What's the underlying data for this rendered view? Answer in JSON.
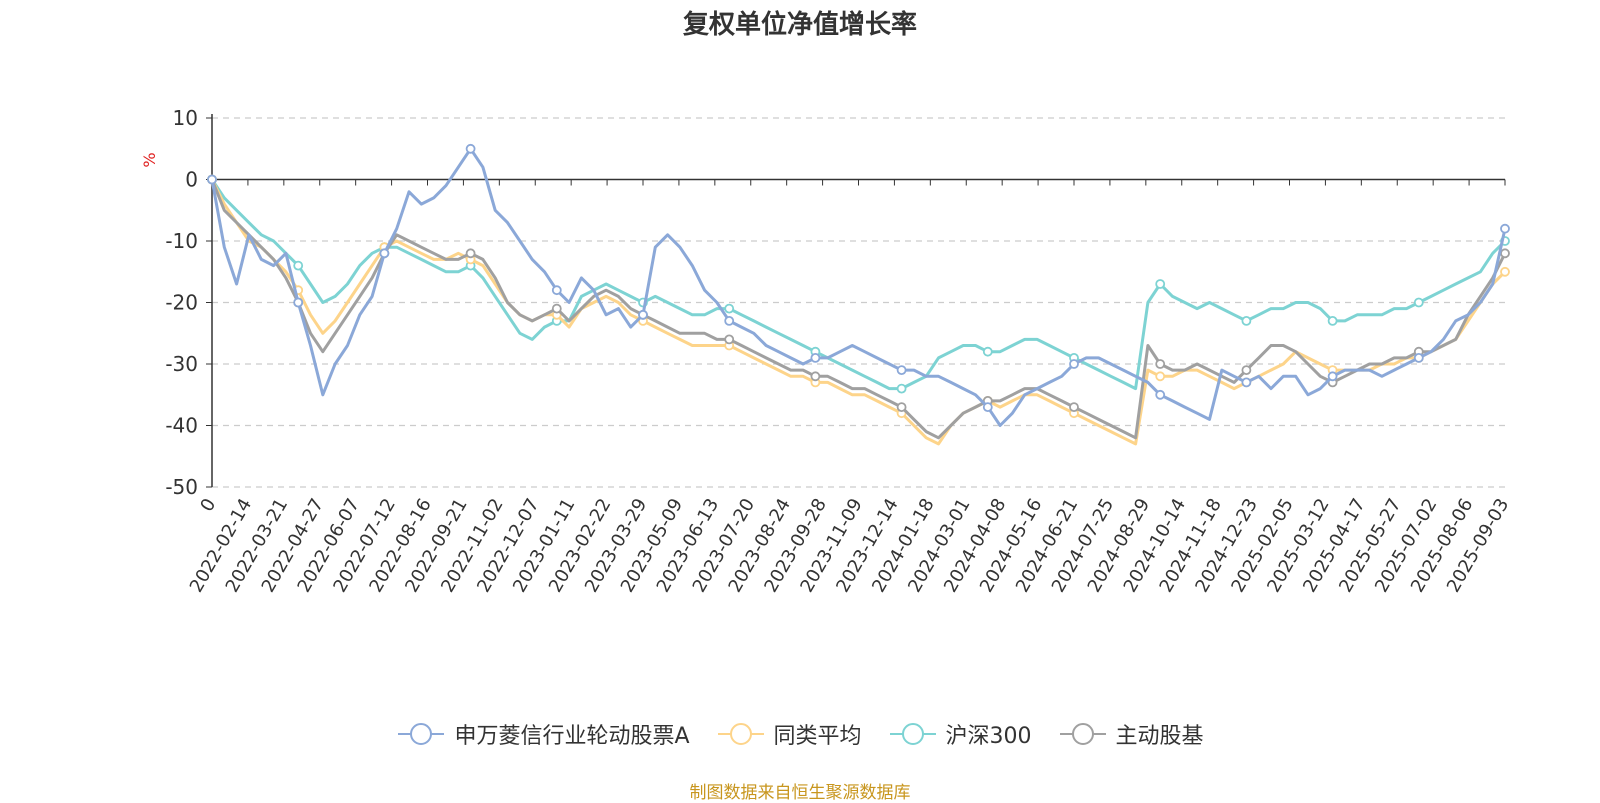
{
  "chart_data": {
    "type": "line",
    "title": "复权单位净值增长率",
    "ylabel": "%",
    "ylim": [
      -50,
      10
    ],
    "yticks": [
      10,
      0,
      -10,
      -20,
      -30,
      -40,
      -50
    ],
    "grid": "horizontal-dashed",
    "legend_position": "bottom",
    "x_tick_labels": [
      "0",
      "2022-02-14",
      "2022-03-21",
      "2022-04-27",
      "2022-06-07",
      "2022-07-12",
      "2022-08-16",
      "2022-09-21",
      "2022-11-02",
      "2022-12-07",
      "2023-01-11",
      "2023-02-22",
      "2023-03-29",
      "2023-05-09",
      "2023-06-13",
      "2023-07-20",
      "2023-08-24",
      "2023-09-28",
      "2023-11-09",
      "2023-12-14",
      "2024-01-18",
      "2024-03-01",
      "2024-04-08",
      "2024-05-16",
      "2024-06-21",
      "2024-07-25",
      "2024-08-29",
      "2024-10-14",
      "2024-11-18",
      "2024-12-23",
      "2025-02-05",
      "2025-03-12",
      "2025-04-17",
      "2025-05-27",
      "2025-07-02",
      "2025-08-06",
      "2025-09-03"
    ],
    "series": [
      {
        "name": "申万菱信行业轮动股票A",
        "color": "#8ba8d8",
        "values": [
          0,
          -11,
          -17,
          -9,
          -13,
          -14,
          -12,
          -20,
          -27,
          -35,
          -30,
          -27,
          -22,
          -19,
          -12,
          -8,
          -2,
          -4,
          -3,
          -1,
          2,
          5,
          2,
          -5,
          -7,
          -10,
          -13,
          -15,
          -18,
          -20,
          -16,
          -18,
          -22,
          -21,
          -24,
          -22,
          -11,
          -9,
          -11,
          -14,
          -18,
          -20,
          -23,
          -24,
          -25,
          -27,
          -28,
          -29,
          -30,
          -29,
          -29,
          -28,
          -27,
          -28,
          -29,
          -30,
          -31,
          -31,
          -32,
          -32,
          -33,
          -34,
          -35,
          -37,
          -40,
          -38,
          -35,
          -34,
          -33,
          -32,
          -30,
          -29,
          -29,
          -30,
          -31,
          -32,
          -33,
          -35,
          -36,
          -37,
          -38,
          -39,
          -31,
          -32,
          -33,
          -32,
          -34,
          -32,
          -32,
          -35,
          -34,
          -32,
          -31,
          -31,
          -31,
          -32,
          -31,
          -30,
          -29,
          -28,
          -26,
          -23,
          -22,
          -20,
          -17,
          -8
        ]
      },
      {
        "name": "同类平均",
        "color": "#fdd48a",
        "values": [
          0,
          -4,
          -7,
          -10,
          -11,
          -13,
          -15,
          -18,
          -22,
          -25,
          -23,
          -20,
          -17,
          -14,
          -11,
          -10,
          -11,
          -12,
          -13,
          -13,
          -12,
          -13,
          -14,
          -17,
          -20,
          -22,
          -23,
          -22,
          -22,
          -24,
          -21,
          -20,
          -19,
          -20,
          -22,
          -23,
          -24,
          -25,
          -26,
          -27,
          -27,
          -27,
          -27,
          -28,
          -29,
          -30,
          -31,
          -32,
          -32,
          -33,
          -33,
          -34,
          -35,
          -35,
          -36,
          -37,
          -38,
          -40,
          -42,
          -43,
          -40,
          -38,
          -37,
          -36,
          -37,
          -36,
          -35,
          -35,
          -36,
          -37,
          -38,
          -39,
          -40,
          -41,
          -42,
          -43,
          -31,
          -32,
          -32,
          -31,
          -31,
          -32,
          -33,
          -34,
          -33,
          -32,
          -31,
          -30,
          -28,
          -29,
          -30,
          -31,
          -31,
          -31,
          -31,
          -30,
          -30,
          -29,
          -29,
          -28,
          -27,
          -26,
          -23,
          -20,
          -17,
          -15
        ]
      },
      {
        "name": "沪深300",
        "color": "#7dd3d3",
        "values": [
          0,
          -3,
          -5,
          -7,
          -9,
          -10,
          -12,
          -14,
          -17,
          -20,
          -19,
          -17,
          -14,
          -12,
          -11,
          -11,
          -12,
          -13,
          -14,
          -15,
          -15,
          -14,
          -16,
          -19,
          -22,
          -25,
          -26,
          -24,
          -23,
          -23,
          -19,
          -18,
          -17,
          -18,
          -19,
          -20,
          -19,
          -20,
          -21,
          -22,
          -22,
          -21,
          -21,
          -22,
          -23,
          -24,
          -25,
          -26,
          -27,
          -28,
          -29,
          -30,
          -31,
          -32,
          -33,
          -34,
          -34,
          -33,
          -32,
          -29,
          -28,
          -27,
          -27,
          -28,
          -28,
          -27,
          -26,
          -26,
          -27,
          -28,
          -29,
          -30,
          -31,
          -32,
          -33,
          -34,
          -20,
          -17,
          -19,
          -20,
          -21,
          -20,
          -21,
          -22,
          -23,
          -22,
          -21,
          -21,
          -20,
          -20,
          -21,
          -23,
          -23,
          -22,
          -22,
          -22,
          -21,
          -21,
          -20,
          -19,
          -18,
          -17,
          -16,
          -15,
          -12,
          -10
        ]
      },
      {
        "name": "主动股基",
        "color": "#a0a0a0",
        "values": [
          0,
          -5,
          -7,
          -9,
          -11,
          -13,
          -16,
          -20,
          -25,
          -28,
          -25,
          -22,
          -19,
          -16,
          -12,
          -9,
          -10,
          -11,
          -12,
          -13,
          -13,
          -12,
          -13,
          -16,
          -20,
          -22,
          -23,
          -22,
          -21,
          -23,
          -21,
          -19,
          -18,
          -19,
          -21,
          -22,
          -23,
          -24,
          -25,
          -25,
          -25,
          -26,
          -26,
          -27,
          -28,
          -29,
          -30,
          -31,
          -31,
          -32,
          -32,
          -33,
          -34,
          -34,
          -35,
          -36,
          -37,
          -39,
          -41,
          -42,
          -40,
          -38,
          -37,
          -36,
          -36,
          -35,
          -34,
          -34,
          -35,
          -36,
          -37,
          -38,
          -39,
          -40,
          -41,
          -42,
          -27,
          -30,
          -31,
          -31,
          -30,
          -31,
          -32,
          -33,
          -31,
          -29,
          -27,
          -27,
          -28,
          -30,
          -32,
          -33,
          -32,
          -31,
          -30,
          -30,
          -29,
          -29,
          -28,
          -28,
          -27,
          -26,
          -22,
          -19,
          -16,
          -12
        ]
      }
    ]
  },
  "legend": {
    "items": [
      {
        "label": "申万菱信行业轮动股票A",
        "color": "#8ba8d8"
      },
      {
        "label": "同类平均",
        "color": "#fdd48a"
      },
      {
        "label": "沪深300",
        "color": "#7dd3d3"
      },
      {
        "label": "主动股基",
        "color": "#a0a0a0"
      }
    ]
  },
  "footer": {
    "source": "制图数据来自恒生聚源数据库"
  }
}
